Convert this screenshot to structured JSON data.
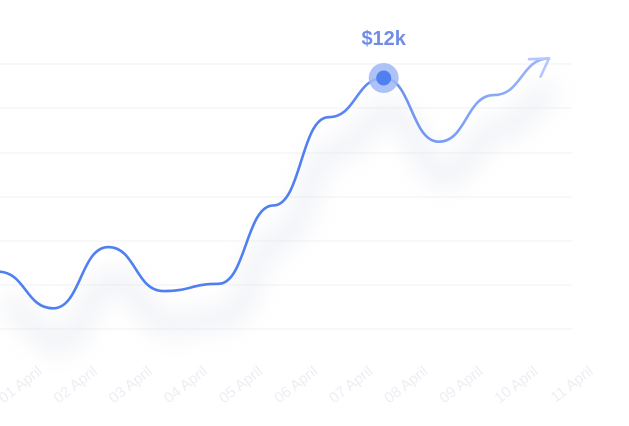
{
  "chart_data": {
    "type": "line",
    "title": "",
    "xlabel": "",
    "ylabel": "",
    "categories": [
      "01 April",
      "02 April",
      "03 April",
      "04 April",
      "05 April",
      "06 April",
      "07 April",
      "08 April",
      "09 April",
      "10 April",
      "11 April"
    ],
    "ylim": [
      0,
      14
    ],
    "grid": true,
    "trend_arrow": true,
    "series": [
      {
        "points": [
          {
            "x": "01 April",
            "y": 4.1
          },
          {
            "x": "02 April",
            "y": 2.6
          },
          {
            "x": "03 April",
            "y": 5.1
          },
          {
            "x": "04 April",
            "y": 3.3
          },
          {
            "x": "05 April",
            "y": 3.6
          },
          {
            "x": "06 April",
            "y": 6.8
          },
          {
            "x": "07 April",
            "y": 10.4
          },
          {
            "x": "08 April",
            "y": 12.0
          },
          {
            "x": "09 April",
            "y": 9.4
          },
          {
            "x": "10 April",
            "y": 11.3
          },
          {
            "x": "11 April",
            "y": 12.8
          }
        ]
      }
    ],
    "highlight": {
      "x": "08 April",
      "y": 12.0,
      "label": "$12k"
    },
    "colors": {
      "line_start": "#4f7ff0",
      "line_end": "#b4c8ff",
      "marker_fill": "#4f7ff0",
      "marker_ring": "#9fb9f7",
      "label": "#6f8ce8",
      "grid": "#f0f1f4",
      "tick": "#eceef3"
    }
  }
}
